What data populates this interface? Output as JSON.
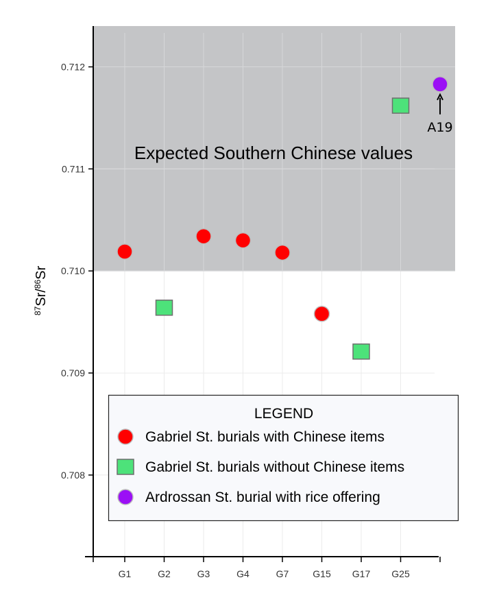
{
  "chart_data": {
    "type": "scatter",
    "categories": [
      "G1",
      "G2",
      "G3",
      "G4",
      "G7",
      "G15",
      "G17",
      "G25",
      ""
    ],
    "ylim": [
      0.7072,
      0.7124
    ],
    "yticks": [
      0.708,
      0.709,
      0.71,
      0.711,
      0.712
    ],
    "ytick_labels": [
      "0.708",
      "0.709",
      "0.710",
      "0.711",
      "0.712"
    ],
    "ylabel": {
      "sup1": "87",
      "base1": "Sr/",
      "sup2": "86",
      "base2": "Sr"
    },
    "grid": true,
    "band": {
      "label": "Expected Southern Chinese values",
      "y_from": 0.71,
      "y_to": 0.7124,
      "color": "#c4c5c7"
    },
    "series": [
      {
        "name": "Gabriel St. burials with Chinese items",
        "marker": "circle",
        "color": "#ff0000",
        "points": [
          {
            "x": "G1",
            "y": 0.71019
          },
          {
            "x": "G3",
            "y": 0.71034
          },
          {
            "x": "G4",
            "y": 0.7103
          },
          {
            "x": "G7",
            "y": 0.71018
          },
          {
            "x": "G15",
            "y": 0.70958
          }
        ]
      },
      {
        "name": "Gabriel St. burials without Chinese items",
        "marker": "square",
        "color": "#4de27a",
        "points": [
          {
            "x": "G2",
            "y": 0.70964
          },
          {
            "x": "G17",
            "y": 0.70921
          },
          {
            "x": "G25",
            "y": 0.71162
          }
        ]
      },
      {
        "name": "Ardrossan St. burial with rice offering",
        "marker": "circle",
        "color": "#9b10f5",
        "points": [
          {
            "x": "",
            "y": 0.71183
          }
        ]
      }
    ],
    "annotations": [
      {
        "text": "A19",
        "target_series": 2,
        "target_point": 0
      }
    ],
    "legend": {
      "title": "LEGEND",
      "placement": "bottom-right"
    }
  }
}
